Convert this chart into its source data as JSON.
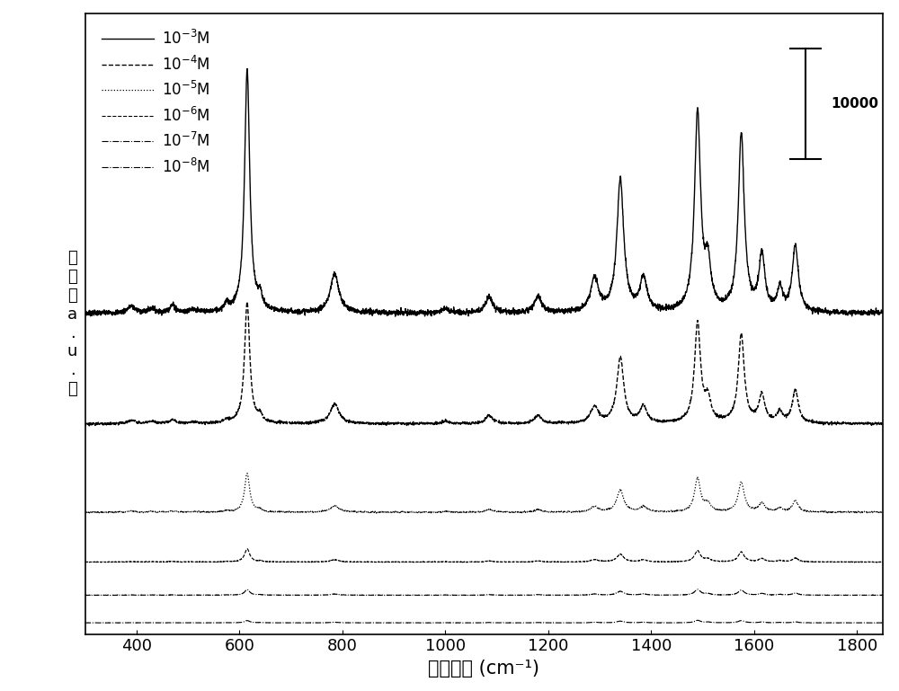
{
  "x_min": 300,
  "x_max": 1850,
  "xlabel": "拉曼位移 (cm⁻¹)",
  "ylabel": "强度（a.u.）",
  "xlabel_fontsize": 15,
  "ylabel_fontsize": 13,
  "tick_fontsize": 13,
  "line_styles": [
    "-",
    "--",
    ":",
    "--",
    "-.",
    "-."
  ],
  "line_widths": [
    1.0,
    1.0,
    0.9,
    0.8,
    0.8,
    0.8
  ],
  "offsets": [
    28000,
    18000,
    10000,
    5500,
    2500,
    0
  ],
  "scale_bar_value": 10000,
  "background_color": "#ffffff",
  "line_color": "#000000",
  "peaks": [
    390,
    430,
    470,
    510,
    575,
    615,
    640,
    785,
    1000,
    1085,
    1180,
    1290,
    1340,
    1385,
    1490,
    1510,
    1575,
    1615,
    1650,
    1680
  ],
  "peak_widths": [
    9,
    7,
    7,
    7,
    6,
    6,
    5,
    10,
    8,
    8,
    8,
    9,
    8,
    8,
    7,
    7,
    7,
    7,
    6,
    7
  ],
  "peak_heights_c3": [
    600,
    400,
    700,
    300,
    600,
    22000,
    1200,
    3500,
    400,
    1500,
    1500,
    3000,
    12000,
    3000,
    18000,
    4000,
    16000,
    5000,
    2000,
    6000
  ],
  "peak_heights_c4": [
    300,
    200,
    350,
    150,
    300,
    11000,
    600,
    1800,
    200,
    750,
    750,
    1500,
    6000,
    1500,
    9000,
    2000,
    8000,
    2500,
    1000,
    3000
  ],
  "peak_heights_c5": [
    100,
    70,
    120,
    50,
    100,
    3500,
    200,
    600,
    70,
    250,
    250,
    500,
    2000,
    500,
    3000,
    700,
    2700,
    800,
    350,
    1000
  ],
  "peak_heights_c6": [
    40,
    30,
    50,
    20,
    40,
    1200,
    80,
    200,
    30,
    100,
    100,
    200,
    700,
    200,
    1000,
    250,
    900,
    300,
    120,
    350
  ],
  "peak_heights_c7": [
    20,
    15,
    25,
    10,
    20,
    500,
    40,
    100,
    15,
    50,
    50,
    100,
    350,
    100,
    500,
    120,
    450,
    150,
    60,
    180
  ],
  "peak_heights_c8": [
    10,
    8,
    12,
    5,
    10,
    200,
    20,
    50,
    8,
    25,
    25,
    50,
    150,
    50,
    220,
    60,
    200,
    70,
    30,
    80
  ],
  "noise_levels": [
    120,
    60,
    30,
    15,
    8,
    5
  ],
  "base_noises": [
    50,
    25,
    12,
    6,
    3,
    2
  ]
}
